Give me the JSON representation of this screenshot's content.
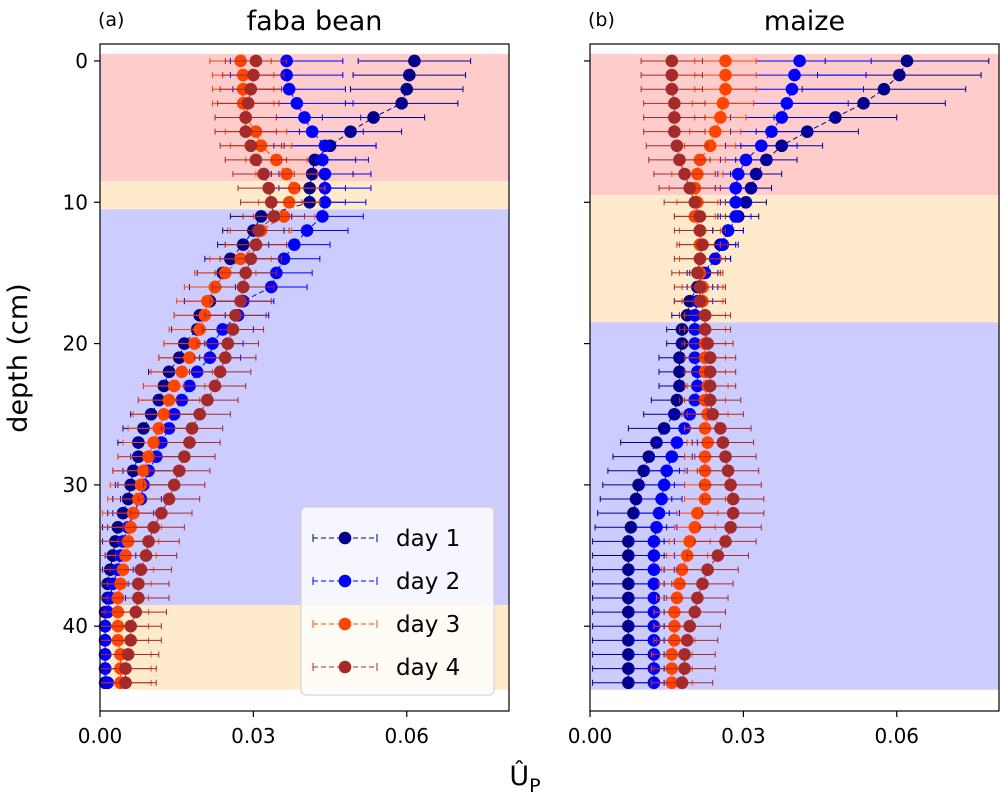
{
  "figure": {
    "ylabel": "depth (cm)",
    "xlabel": "Û_P",
    "xlabel_main": "Û",
    "xlabel_sub": "P"
  },
  "legend": {
    "entries": [
      "day 1",
      "day 2",
      "day 3",
      "day 4"
    ],
    "location": "lower-right of panel (a)"
  },
  "colors": {
    "day1": "#00008b",
    "day2": "#0000ff",
    "day3": "#ff4500",
    "day4": "#a52a2a",
    "band_red": "#ffcccc",
    "band_orange": "#ffebcc",
    "band_blue": "#ccccff"
  },
  "chart_data": [
    {
      "type": "scatter",
      "panel_label": "(a)",
      "title": "faba bean",
      "xlabel": "Û_P",
      "ylabel": "depth (cm)",
      "xlim": [
        0,
        0.08
      ],
      "ylim": [
        46,
        -1.2
      ],
      "y_inverted": true,
      "xticks": [
        0.0,
        0.03,
        0.06
      ],
      "xtick_labels": [
        "0.00",
        "0.03",
        "0.06"
      ],
      "yticks": [
        0,
        10,
        20,
        30,
        40
      ],
      "ytick_labels": [
        "0",
        "10",
        "20",
        "30",
        "40"
      ],
      "bands": [
        {
          "from": -0.5,
          "to": 8.5,
          "color": "red"
        },
        {
          "from": 8.5,
          "to": 10.5,
          "color": "orange"
        },
        {
          "from": 10.5,
          "to": 38.5,
          "color": "blue"
        },
        {
          "from": 38.5,
          "to": 44.5,
          "color": "orange"
        }
      ],
      "depth": [
        0,
        1,
        2,
        3,
        4,
        5,
        6,
        7,
        8,
        9,
        10,
        11,
        12,
        13,
        14,
        15,
        16,
        17,
        18,
        19,
        20,
        21,
        22,
        23,
        24,
        25,
        26,
        27,
        28,
        29,
        30,
        31,
        32,
        33,
        34,
        35,
        36,
        37,
        38,
        39,
        40,
        41,
        42,
        43,
        44
      ],
      "series": [
        {
          "name": "day 1",
          "color_key": "day1",
          "values": [
            0.0615,
            0.0605,
            0.06,
            0.059,
            0.0535,
            0.049,
            0.045,
            0.042,
            0.0415,
            0.041,
            0.041,
            0.0315,
            0.03,
            0.028,
            0.0255,
            0.024,
            0.0225,
            0.0215,
            0.0195,
            0.019,
            0.0165,
            0.0155,
            0.0135,
            0.0125,
            0.0115,
            0.01,
            0.0085,
            0.0075,
            0.0075,
            0.0065,
            0.006,
            0.0055,
            0.0045,
            0.0035,
            0.003,
            0.0025,
            0.002,
            0.0015,
            0.0015,
            0.001,
            0.001,
            0.001,
            0.001,
            0.001,
            0.001
          ],
          "err": [
            0.011,
            0.011,
            0.011,
            0.011,
            0.01,
            0.01,
            0.009,
            0.008,
            0.008,
            0.007,
            0.007,
            0.006,
            0.006,
            0.005,
            0.005,
            0.005,
            0.005,
            0.005,
            0.005,
            0.005,
            0.004,
            0.004,
            0.004,
            0.004,
            0.004,
            0.004,
            0.004,
            0.004,
            0.004,
            0.004,
            0.003,
            0.003,
            0.003,
            0.003,
            0.003,
            0.003,
            0.003,
            0.002,
            0.002,
            0.002,
            0.002,
            0.002,
            0.002,
            0.002,
            0.002
          ]
        },
        {
          "name": "day 2",
          "color_key": "day2",
          "values": [
            0.0365,
            0.0365,
            0.037,
            0.0385,
            0.04,
            0.0415,
            0.044,
            0.0435,
            0.044,
            0.044,
            0.044,
            0.0435,
            0.0405,
            0.038,
            0.036,
            0.0345,
            0.0335,
            0.028,
            0.027,
            0.024,
            0.022,
            0.0215,
            0.019,
            0.0175,
            0.016,
            0.0145,
            0.0135,
            0.012,
            0.011,
            0.0095,
            0.0085,
            0.008,
            0.0065,
            0.0055,
            0.0045,
            0.004,
            0.0035,
            0.0025,
            0.002,
            0.0015,
            0.001,
            0.001,
            0.001,
            0.001,
            0.0015
          ],
          "err": [
            0.011,
            0.011,
            0.011,
            0.011,
            0.011,
            0.01,
            0.01,
            0.009,
            0.009,
            0.009,
            0.008,
            0.008,
            0.008,
            0.007,
            0.007,
            0.007,
            0.007,
            0.006,
            0.006,
            0.006,
            0.006,
            0.006,
            0.005,
            0.005,
            0.005,
            0.005,
            0.005,
            0.005,
            0.005,
            0.005,
            0.005,
            0.004,
            0.004,
            0.004,
            0.004,
            0.003,
            0.003,
            0.003,
            0.003,
            0.003,
            0.003,
            0.003,
            0.003,
            0.003,
            0.003
          ]
        },
        {
          "name": "day 3",
          "color_key": "day3",
          "values": [
            0.0275,
            0.028,
            0.028,
            0.028,
            0.0285,
            0.0305,
            0.0315,
            0.0345,
            0.0365,
            0.038,
            0.037,
            0.036,
            0.0315,
            0.0305,
            0.0275,
            0.0245,
            0.0225,
            0.021,
            0.0205,
            0.0195,
            0.0185,
            0.0175,
            0.016,
            0.0145,
            0.0135,
            0.0125,
            0.0115,
            0.0105,
            0.0095,
            0.0085,
            0.008,
            0.0075,
            0.0065,
            0.006,
            0.0055,
            0.005,
            0.0045,
            0.004,
            0.0035,
            0.0035,
            0.0035,
            0.0035,
            0.004,
            0.004,
            0.004
          ],
          "err": [
            0.006,
            0.006,
            0.006,
            0.006,
            0.006,
            0.006,
            0.006,
            0.006,
            0.006,
            0.006,
            0.006,
            0.006,
            0.006,
            0.006,
            0.006,
            0.006,
            0.006,
            0.006,
            0.006,
            0.006,
            0.006,
            0.006,
            0.006,
            0.006,
            0.006,
            0.006,
            0.006,
            0.006,
            0.006,
            0.006,
            0.006,
            0.006,
            0.006,
            0.006,
            0.006,
            0.006,
            0.006,
            0.006,
            0.006,
            0.006,
            0.006,
            0.006,
            0.006,
            0.006,
            0.006
          ]
        },
        {
          "name": "day 4",
          "color_key": "day4",
          "values": [
            0.0305,
            0.03,
            0.0295,
            0.029,
            0.0285,
            0.0285,
            0.0295,
            0.0305,
            0.032,
            0.033,
            0.0335,
            0.034,
            0.031,
            0.0305,
            0.0295,
            0.0285,
            0.028,
            0.0275,
            0.0265,
            0.026,
            0.025,
            0.0245,
            0.0235,
            0.0225,
            0.021,
            0.0195,
            0.018,
            0.0175,
            0.0165,
            0.0155,
            0.0145,
            0.0135,
            0.012,
            0.0105,
            0.0095,
            0.009,
            0.008,
            0.0075,
            0.0075,
            0.007,
            0.006,
            0.006,
            0.0055,
            0.005,
            0.005
          ],
          "err": [
            0.006,
            0.006,
            0.006,
            0.006,
            0.006,
            0.006,
            0.006,
            0.006,
            0.006,
            0.006,
            0.006,
            0.006,
            0.006,
            0.006,
            0.006,
            0.006,
            0.006,
            0.006,
            0.006,
            0.006,
            0.006,
            0.006,
            0.006,
            0.006,
            0.006,
            0.006,
            0.006,
            0.006,
            0.006,
            0.006,
            0.006,
            0.006,
            0.006,
            0.006,
            0.006,
            0.006,
            0.006,
            0.006,
            0.006,
            0.006,
            0.006,
            0.006,
            0.006,
            0.006,
            0.006
          ]
        }
      ]
    },
    {
      "type": "scatter",
      "panel_label": "(b)",
      "title": "maize",
      "xlabel": "Û_P",
      "ylabel": "depth (cm)",
      "xlim": [
        0,
        0.08
      ],
      "ylim": [
        46,
        -1.2
      ],
      "y_inverted": true,
      "xticks": [
        0.0,
        0.03,
        0.06
      ],
      "xtick_labels": [
        "0.00",
        "0.03",
        "0.06"
      ],
      "yticks": [
        0,
        10,
        20,
        30,
        40
      ],
      "ytick_labels": [],
      "bands": [
        {
          "from": -0.5,
          "to": 9.5,
          "color": "red"
        },
        {
          "from": 9.5,
          "to": 18.5,
          "color": "orange"
        },
        {
          "from": 18.5,
          "to": 44.5,
          "color": "blue"
        }
      ],
      "depth": [
        0,
        1,
        2,
        3,
        4,
        5,
        6,
        7,
        8,
        9,
        10,
        11,
        12,
        13,
        14,
        15,
        16,
        17,
        18,
        19,
        20,
        21,
        22,
        23,
        24,
        25,
        26,
        27,
        28,
        29,
        30,
        31,
        32,
        33,
        34,
        35,
        36,
        37,
        38,
        39,
        40,
        41,
        42,
        43,
        44
      ],
      "series": [
        {
          "name": "day 1",
          "color_key": "day1",
          "values": [
            0.062,
            0.0605,
            0.0575,
            0.0535,
            0.048,
            0.0425,
            0.0375,
            0.0345,
            0.0325,
            0.0315,
            0.0305,
            0.029,
            0.027,
            0.0255,
            0.0245,
            0.022,
            0.021,
            0.0195,
            0.019,
            0.018,
            0.018,
            0.0175,
            0.0175,
            0.0175,
            0.017,
            0.0165,
            0.0145,
            0.013,
            0.0115,
            0.0105,
            0.0095,
            0.009,
            0.0085,
            0.008,
            0.0075,
            0.0075,
            0.0075,
            0.0075,
            0.0075,
            0.0075,
            0.0075,
            0.0075,
            0.0075,
            0.0075,
            0.0075
          ],
          "err": [
            0.016,
            0.016,
            0.016,
            0.016,
            0.012,
            0.01,
            0.008,
            0.006,
            0.005,
            0.004,
            0.004,
            0.004,
            0.003,
            0.003,
            0.003,
            0.003,
            0.003,
            0.003,
            0.003,
            0.003,
            0.003,
            0.004,
            0.004,
            0.004,
            0.005,
            0.006,
            0.007,
            0.007,
            0.007,
            0.007,
            0.007,
            0.007,
            0.007,
            0.007,
            0.007,
            0.007,
            0.007,
            0.007,
            0.007,
            0.007,
            0.007,
            0.007,
            0.007,
            0.007,
            0.007
          ]
        },
        {
          "name": "day 2",
          "color_key": "day2",
          "values": [
            0.041,
            0.04,
            0.0395,
            0.0385,
            0.0375,
            0.0355,
            0.0335,
            0.0305,
            0.029,
            0.0285,
            0.0285,
            0.0285,
            0.027,
            0.026,
            0.0245,
            0.0225,
            0.022,
            0.021,
            0.0205,
            0.0205,
            0.0205,
            0.0205,
            0.021,
            0.021,
            0.0205,
            0.0195,
            0.0185,
            0.017,
            0.016,
            0.015,
            0.0145,
            0.014,
            0.0135,
            0.013,
            0.0125,
            0.0125,
            0.0125,
            0.0125,
            0.0125,
            0.0125,
            0.0125,
            0.0125,
            0.0125,
            0.0125,
            0.0125
          ],
          "err": [
            0.014,
            0.014,
            0.014,
            0.012,
            0.01,
            0.008,
            0.007,
            0.005,
            0.004,
            0.004,
            0.003,
            0.003,
            0.003,
            0.003,
            0.003,
            0.003,
            0.003,
            0.003,
            0.003,
            0.003,
            0.003,
            0.003,
            0.003,
            0.003,
            0.003,
            0.004,
            0.004,
            0.004,
            0.004,
            0.004,
            0.004,
            0.004,
            0.004,
            0.004,
            0.004,
            0.004,
            0.004,
            0.004,
            0.004,
            0.004,
            0.004,
            0.004,
            0.004,
            0.004,
            0.004
          ]
        },
        {
          "name": "day 3",
          "color_key": "day3",
          "values": [
            0.0265,
            0.0265,
            0.0265,
            0.026,
            0.0255,
            0.0245,
            0.0235,
            0.0215,
            0.021,
            0.0205,
            0.021,
            0.0205,
            0.0215,
            0.0215,
            0.0215,
            0.0215,
            0.022,
            0.022,
            0.0225,
            0.0225,
            0.0225,
            0.0225,
            0.0225,
            0.023,
            0.0225,
            0.023,
            0.0225,
            0.023,
            0.0225,
            0.0225,
            0.0225,
            0.0225,
            0.021,
            0.0205,
            0.0195,
            0.019,
            0.018,
            0.0175,
            0.017,
            0.0165,
            0.0165,
            0.0165,
            0.016,
            0.016,
            0.016
          ],
          "err": [
            0.006,
            0.006,
            0.006,
            0.006,
            0.005,
            0.005,
            0.005,
            0.005,
            0.005,
            0.005,
            0.004,
            0.004,
            0.004,
            0.004,
            0.004,
            0.004,
            0.004,
            0.004,
            0.004,
            0.004,
            0.004,
            0.004,
            0.004,
            0.004,
            0.004,
            0.004,
            0.004,
            0.004,
            0.004,
            0.004,
            0.004,
            0.004,
            0.004,
            0.004,
            0.004,
            0.004,
            0.004,
            0.004,
            0.004,
            0.004,
            0.004,
            0.004,
            0.004,
            0.004,
            0.004
          ]
        },
        {
          "name": "day 4",
          "color_key": "day4",
          "values": [
            0.016,
            0.016,
            0.016,
            0.0165,
            0.0165,
            0.0165,
            0.017,
            0.0175,
            0.0185,
            0.0195,
            0.0205,
            0.0215,
            0.0215,
            0.022,
            0.0215,
            0.021,
            0.0215,
            0.0215,
            0.0225,
            0.0225,
            0.023,
            0.0235,
            0.0235,
            0.0235,
            0.0235,
            0.024,
            0.0255,
            0.026,
            0.0265,
            0.027,
            0.0275,
            0.028,
            0.028,
            0.0275,
            0.0265,
            0.025,
            0.023,
            0.022,
            0.021,
            0.0205,
            0.0195,
            0.019,
            0.0185,
            0.0185,
            0.018
          ],
          "err": [
            0.006,
            0.006,
            0.006,
            0.006,
            0.006,
            0.006,
            0.006,
            0.006,
            0.006,
            0.006,
            0.006,
            0.005,
            0.005,
            0.005,
            0.005,
            0.005,
            0.005,
            0.005,
            0.005,
            0.005,
            0.005,
            0.005,
            0.005,
            0.005,
            0.006,
            0.006,
            0.006,
            0.006,
            0.006,
            0.006,
            0.006,
            0.006,
            0.006,
            0.006,
            0.006,
            0.006,
            0.006,
            0.006,
            0.006,
            0.006,
            0.006,
            0.006,
            0.006,
            0.006,
            0.006
          ]
        }
      ]
    }
  ]
}
